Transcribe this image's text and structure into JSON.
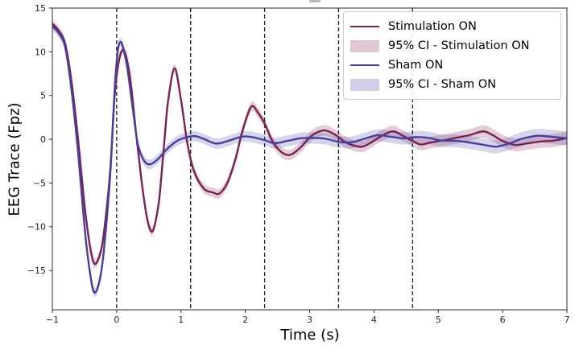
{
  "chart_data": {
    "type": "line",
    "title": "",
    "xlabel": "Time (s)",
    "ylabel": "EEG Trace (Fpz)",
    "xlim": [
      -1,
      7
    ],
    "ylim": [
      -19.5,
      15
    ],
    "grid": false,
    "xticks": {
      "values": [
        -1,
        0,
        1,
        2,
        3,
        4,
        5,
        6,
        7
      ],
      "labels": [
        "−1",
        "0",
        "1",
        "2",
        "3",
        "4",
        "5",
        "6",
        "7"
      ]
    },
    "yticks": {
      "values": [
        -15,
        -10,
        -5,
        0,
        5,
        10,
        15
      ],
      "labels": [
        "−15",
        "−10",
        "−5",
        "0",
        "5",
        "10",
        "15"
      ]
    },
    "vlines": {
      "positions": [
        0,
        1.15,
        2.3,
        3.45,
        4.6
      ],
      "style": "dashed",
      "color": "#1a1a1a"
    },
    "spine_color": "#2b2b2b",
    "tick_label_color": "#262626",
    "series": [
      {
        "name": "Stimulation ON",
        "color": "#7b2150",
        "line_width": 2.4,
        "ci_label": "95% CI - Stimulation ON",
        "ci_opacity": 0.22,
        "ci_halfwidth_start": 0.45,
        "ci_halfwidth_end": 0.75,
        "points": [
          [
            -1.0,
            13.2
          ],
          [
            -0.9,
            12.4
          ],
          [
            -0.8,
            10.9
          ],
          [
            -0.7,
            6.5
          ],
          [
            -0.6,
            0.0
          ],
          [
            -0.5,
            -7.5
          ],
          [
            -0.42,
            -12.0
          ],
          [
            -0.35,
            -14.2
          ],
          [
            -0.27,
            -13.4
          ],
          [
            -0.2,
            -10.8
          ],
          [
            -0.1,
            -3.5
          ],
          [
            -0.02,
            6.0
          ],
          [
            0.09,
            10.2
          ],
          [
            0.2,
            7.5
          ],
          [
            0.3,
            0.8
          ],
          [
            0.4,
            -5.5
          ],
          [
            0.48,
            -9.3
          ],
          [
            0.56,
            -10.5
          ],
          [
            0.65,
            -7.5
          ],
          [
            0.7,
            -3.8
          ],
          [
            0.75,
            0.5
          ],
          [
            0.8,
            4.4
          ],
          [
            0.9,
            8.1
          ],
          [
            1.0,
            4.5
          ],
          [
            1.1,
            -0.5
          ],
          [
            1.2,
            -3.6
          ],
          [
            1.35,
            -5.6
          ],
          [
            1.5,
            -6.1
          ],
          [
            1.6,
            -6.2
          ],
          [
            1.72,
            -5.0
          ],
          [
            1.85,
            -2.2
          ],
          [
            1.95,
            0.8
          ],
          [
            2.09,
            3.7
          ],
          [
            2.2,
            3.0
          ],
          [
            2.3,
            1.8
          ],
          [
            2.42,
            -0.2
          ],
          [
            2.55,
            -1.4
          ],
          [
            2.69,
            -1.8
          ],
          [
            2.85,
            -1.0
          ],
          [
            3.0,
            0.2
          ],
          [
            3.12,
            0.8
          ],
          [
            3.25,
            1.0
          ],
          [
            3.4,
            0.5
          ],
          [
            3.55,
            -0.3
          ],
          [
            3.7,
            -0.75
          ],
          [
            3.82,
            -0.85
          ],
          [
            3.95,
            -0.4
          ],
          [
            4.1,
            0.3
          ],
          [
            4.29,
            0.9
          ],
          [
            4.45,
            0.4
          ],
          [
            4.6,
            -0.2
          ],
          [
            4.73,
            -0.6
          ],
          [
            4.9,
            -0.35
          ],
          [
            5.1,
            -0.1
          ],
          [
            5.3,
            0.2
          ],
          [
            5.5,
            0.5
          ],
          [
            5.7,
            0.9
          ],
          [
            5.85,
            0.45
          ],
          [
            6.0,
            -0.2
          ],
          [
            6.2,
            -0.65
          ],
          [
            6.4,
            -0.45
          ],
          [
            6.6,
            -0.25
          ],
          [
            6.8,
            -0.15
          ],
          [
            7.0,
            0.15
          ]
        ]
      },
      {
        "name": "Sham ON",
        "color": "#473f9f",
        "line_width": 2.4,
        "ci_label": "95% CI - Sham ON",
        "ci_opacity": 0.22,
        "ci_halfwidth_start": 0.5,
        "ci_halfwidth_end": 0.8,
        "points": [
          [
            -1.0,
            12.9
          ],
          [
            -0.9,
            12.1
          ],
          [
            -0.8,
            10.5
          ],
          [
            -0.7,
            5.5
          ],
          [
            -0.6,
            -1.5
          ],
          [
            -0.5,
            -10.0
          ],
          [
            -0.42,
            -15.0
          ],
          [
            -0.35,
            -17.5
          ],
          [
            -0.27,
            -16.3
          ],
          [
            -0.2,
            -12.8
          ],
          [
            -0.1,
            -4.0
          ],
          [
            -0.02,
            7.0
          ],
          [
            0.05,
            11.1
          ],
          [
            0.15,
            8.8
          ],
          [
            0.25,
            3.5
          ],
          [
            0.33,
            -0.6
          ],
          [
            0.43,
            -2.5
          ],
          [
            0.53,
            -2.85
          ],
          [
            0.65,
            -2.2
          ],
          [
            0.8,
            -1.0
          ],
          [
            0.95,
            -0.15
          ],
          [
            1.1,
            0.25
          ],
          [
            1.22,
            0.35
          ],
          [
            1.35,
            0.05
          ],
          [
            1.55,
            -0.5
          ],
          [
            1.75,
            -0.15
          ],
          [
            1.95,
            0.3
          ],
          [
            2.1,
            0.25
          ],
          [
            2.3,
            -0.1
          ],
          [
            2.45,
            -0.45
          ],
          [
            2.65,
            -0.2
          ],
          [
            2.85,
            0.1
          ],
          [
            3.05,
            0.15
          ],
          [
            3.25,
            0.05
          ],
          [
            3.45,
            -0.3
          ],
          [
            3.65,
            -0.35
          ],
          [
            3.85,
            0.05
          ],
          [
            4.05,
            0.45
          ],
          [
            4.25,
            0.3
          ],
          [
            4.45,
            0.1
          ],
          [
            4.65,
            0.25
          ],
          [
            4.85,
            0.15
          ],
          [
            5.05,
            -0.15
          ],
          [
            5.3,
            -0.2
          ],
          [
            5.55,
            -0.45
          ],
          [
            5.75,
            -0.7
          ],
          [
            5.9,
            -0.85
          ],
          [
            6.1,
            -0.5
          ],
          [
            6.3,
            0.05
          ],
          [
            6.55,
            0.4
          ],
          [
            6.8,
            0.25
          ],
          [
            7.0,
            0.1
          ]
        ]
      }
    ],
    "legend": {
      "position": "upper right",
      "entries": [
        {
          "label": "Stimulation ON",
          "type": "line",
          "color": "#7b2150"
        },
        {
          "label": "95% CI - Stimulation ON",
          "type": "patch",
          "color": "#7b2150"
        },
        {
          "label": "Sham ON",
          "type": "line",
          "color": "#473f9f"
        },
        {
          "label": "95% CI - Sham ON",
          "type": "patch",
          "color": "#473f9f"
        }
      ]
    }
  }
}
